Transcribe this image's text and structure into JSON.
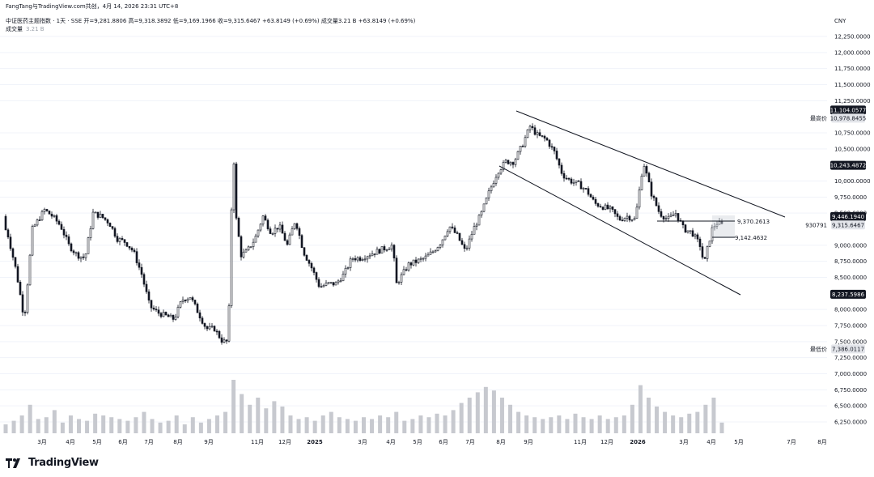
{
  "header": {
    "attribution": "FangTang与TradingView.com共创，4月 14, 2026 23:31 UTC+8",
    "symbol": "中证医药主题指数 · 1天 · SSE",
    "ohlc": "开=9,281.8806  高=9,318.3892  低=9,169.1966  收=9,315.6467  +63.8149 (+0.69%)  成交量3.21 B  +63.8149 (+0.69%)",
    "volume_label": "成交量",
    "volume_value": "3.21 B",
    "currency": "CNY"
  },
  "brand": {
    "name": "TradingView",
    "icon": "tradingview-logo-icon"
  },
  "colors": {
    "candle": "#131722",
    "volume": "#c7c9cf",
    "grid": "#f0f3fa",
    "line": "#131722"
  },
  "chart_data": {
    "type": "candlestick",
    "title": "中证医药主题指数 · 1天 · SSE",
    "x_ticks": [
      "3月",
      "4月",
      "5月",
      "6月",
      "7月",
      "8月",
      "9月",
      "11月",
      "12月",
      "2025",
      "3月",
      "4月",
      "5月",
      "6月",
      "7月",
      "8月",
      "9月",
      "11月",
      "12月",
      "2026",
      "3月",
      "4月",
      "5月",
      "7月",
      "8月"
    ],
    "y_ticks": [
      "12,250.0000",
      "12,000.0000",
      "11,750.0000",
      "11,500.0000",
      "11,250.0000",
      "10,750.0000",
      "10,500.0000",
      "10,000.0000",
      "9,750.0000",
      "9,500.0000",
      "9,000.0000",
      "8,750.0000",
      "8,500.0000",
      "8,000.0000",
      "7,750.0000",
      "7,500.0000",
      "7,250.0000",
      "7,000.0000",
      "6,750.0000",
      "6,500.0000",
      "6,250.0000"
    ],
    "ylim": [
      6100,
      12400
    ],
    "series": [
      {
        "name": "price",
        "points": [
          [
            0,
            9450
          ],
          [
            10,
            9150
          ],
          [
            20,
            8600
          ],
          [
            30,
            7850
          ],
          [
            40,
            9250
          ],
          [
            55,
            9550
          ],
          [
            65,
            9450
          ],
          [
            75,
            9300
          ],
          [
            85,
            9000
          ],
          [
            95,
            8850
          ],
          [
            105,
            8800
          ],
          [
            115,
            9500
          ],
          [
            125,
            9450
          ],
          [
            135,
            9350
          ],
          [
            145,
            9100
          ],
          [
            155,
            9050
          ],
          [
            165,
            8900
          ],
          [
            175,
            8550
          ],
          [
            185,
            8050
          ],
          [
            195,
            7950
          ],
          [
            205,
            7900
          ],
          [
            215,
            7850
          ],
          [
            225,
            8150
          ],
          [
            235,
            8200
          ],
          [
            245,
            7950
          ],
          [
            255,
            7700
          ],
          [
            265,
            7700
          ],
          [
            275,
            7500
          ],
          [
            282,
            7500
          ],
          [
            288,
            10600
          ],
          [
            292,
            9400
          ],
          [
            298,
            8850
          ],
          [
            305,
            8900
          ],
          [
            315,
            9100
          ],
          [
            325,
            9450
          ],
          [
            335,
            9200
          ],
          [
            345,
            9300
          ],
          [
            355,
            9000
          ],
          [
            365,
            9400
          ],
          [
            375,
            8900
          ],
          [
            385,
            8650
          ],
          [
            395,
            8350
          ],
          [
            405,
            8400
          ],
          [
            415,
            8400
          ],
          [
            425,
            8550
          ],
          [
            435,
            8800
          ],
          [
            445,
            8800
          ],
          [
            455,
            8850
          ],
          [
            465,
            8900
          ],
          [
            475,
            8950
          ],
          [
            485,
            9000
          ],
          [
            490,
            8400
          ],
          [
            495,
            8500
          ],
          [
            505,
            8700
          ],
          [
            515,
            8750
          ],
          [
            525,
            8800
          ],
          [
            535,
            8900
          ],
          [
            545,
            9050
          ],
          [
            555,
            9300
          ],
          [
            565,
            9150
          ],
          [
            575,
            8900
          ],
          [
            585,
            9250
          ],
          [
            595,
            9500
          ],
          [
            605,
            9850
          ],
          [
            615,
            10150
          ],
          [
            625,
            10300
          ],
          [
            635,
            10300
          ],
          [
            645,
            10550
          ],
          [
            655,
            10850
          ],
          [
            665,
            10700
          ],
          [
            675,
            10650
          ],
          [
            685,
            10450
          ],
          [
            695,
            10100
          ],
          [
            705,
            10000
          ],
          [
            715,
            9950
          ],
          [
            725,
            9850
          ],
          [
            735,
            9650
          ],
          [
            745,
            9600
          ],
          [
            755,
            9550
          ],
          [
            765,
            9400
          ],
          [
            775,
            9450
          ],
          [
            785,
            9400
          ],
          [
            795,
            10300
          ],
          [
            805,
            9800
          ],
          [
            815,
            9500
          ],
          [
            825,
            9400
          ],
          [
            835,
            9500
          ],
          [
            845,
            9250
          ],
          [
            855,
            9200
          ],
          [
            865,
            9000
          ],
          [
            870,
            8700
          ],
          [
            875,
            9000
          ],
          [
            880,
            9250
          ],
          [
            885,
            9350
          ],
          [
            892,
            9316
          ]
        ]
      },
      {
        "name": "volume",
        "values": [
          3.1,
          3.3,
          3.6,
          4.2,
          3.4,
          3.5,
          3.9,
          3.2,
          3.6,
          3.4,
          3.3,
          3.7,
          3.6,
          3.5,
          3.4,
          3.3,
          3.5,
          3.8,
          3.4,
          3.2,
          3.3,
          3.6,
          3.1,
          3.5,
          3.2,
          3.4,
          3.6,
          3.8,
          5.6,
          4.8,
          4.2,
          4.6,
          4.0,
          4.4,
          4.1,
          3.6,
          3.4,
          3.5,
          3.3,
          3.6,
          3.8,
          3.5,
          3.4,
          3.3,
          3.5,
          3.4,
          3.6,
          3.5,
          3.8,
          3.3,
          3.4,
          3.6,
          3.5,
          3.7,
          3.6,
          3.9,
          4.3,
          4.6,
          4.9,
          5.2,
          5.0,
          4.6,
          4.2,
          3.8,
          3.6,
          3.5,
          3.4,
          3.5,
          3.6,
          3.4,
          3.7,
          3.5,
          3.4,
          3.6,
          3.4,
          3.5,
          3.6,
          4.2,
          5.3,
          4.6,
          4.1,
          3.8,
          3.6,
          3.5,
          3.7,
          3.8,
          4.2,
          4.6,
          3.2
        ]
      }
    ],
    "price_labels": [
      {
        "value": "11,104.0577",
        "badge": true
      },
      {
        "value": "10,978.8455",
        "tag": "最高价"
      },
      {
        "value": "10,243.4872",
        "badge": true
      },
      {
        "value": "9,446.1940",
        "badge": true
      },
      {
        "value": "9,315.6467",
        "tag": "930791"
      },
      {
        "value": "8,237.5986",
        "badge": true
      },
      {
        "value": "7,386.0117",
        "tag": "最低价"
      }
    ],
    "annotations": [
      "9,370.2613",
      "9,142.4632"
    ]
  }
}
